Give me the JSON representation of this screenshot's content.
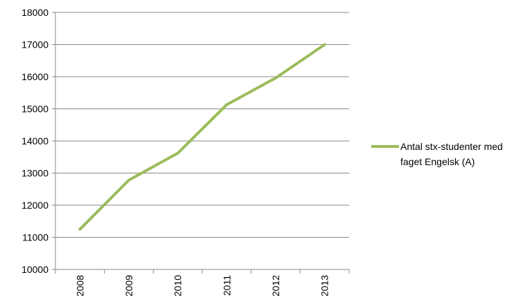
{
  "chart_data": {
    "type": "line",
    "categories": [
      "2008",
      "2009",
      "2010",
      "2011",
      "2012",
      "2013"
    ],
    "series": [
      {
        "name": "Antal stx-studenter med faget Engelsk (A)",
        "legend_lines": [
          "Antal stx-studenter med",
          "faget Engelsk (A)"
        ],
        "values": [
          11250,
          12780,
          13620,
          15130,
          15960,
          17000
        ],
        "color": "#9bbb59"
      }
    ],
    "y_ticks": [
      "10000",
      "11000",
      "12000",
      "13000",
      "14000",
      "15000",
      "16000",
      "17000",
      "18000"
    ],
    "ylim": [
      10000,
      18000
    ],
    "grid": true,
    "legend_position": "right",
    "colors": {
      "grid": "#878787",
      "axis": "#878787",
      "text": "#000000"
    }
  }
}
